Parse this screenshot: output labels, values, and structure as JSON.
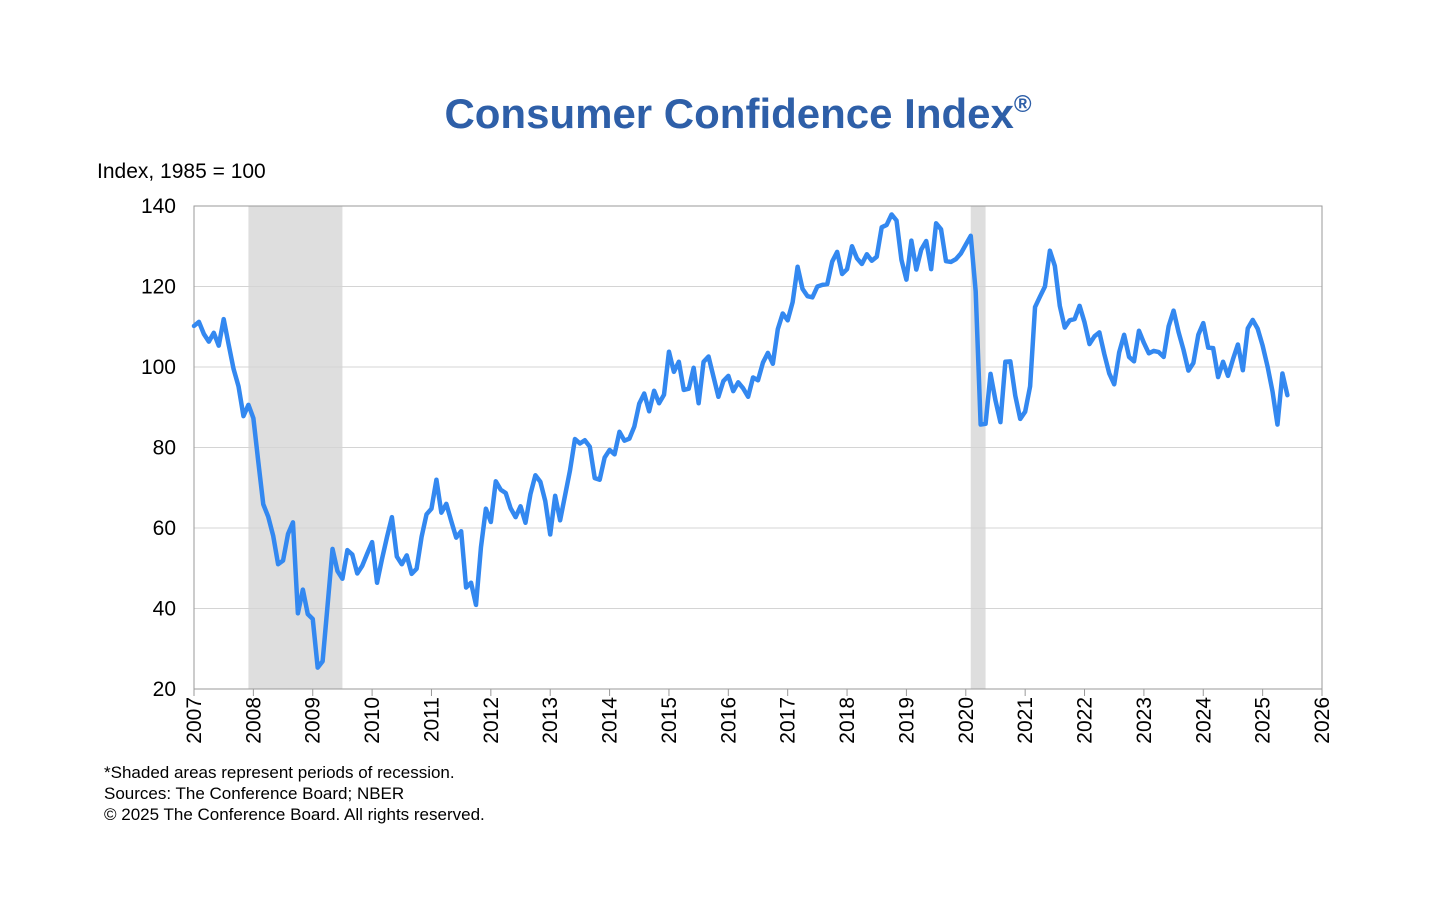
{
  "chart_data": {
    "type": "line",
    "title": "Consumer Confidence Index",
    "title_mark": "®",
    "ylabel": "Index, 1985 = 100",
    "ylim": [
      20,
      140
    ],
    "yticks": [
      "20",
      "40",
      "60",
      "80",
      "100",
      "120",
      "140"
    ],
    "xlim": [
      2007,
      2026
    ],
    "xticks": [
      "2007",
      "2008",
      "2009",
      "2010",
      "2011",
      "2012",
      "2013",
      "2014",
      "2015",
      "2016",
      "2017",
      "2018",
      "2019",
      "2020",
      "2021",
      "2022",
      "2023",
      "2024",
      "2025",
      "2026"
    ],
    "grid": true,
    "legend": "none",
    "line_color": "#3388f0",
    "title_color": "#2e5fa8",
    "recession_color": "#dedede",
    "recessions": [
      {
        "start": "2007-12",
        "end": "2009-06"
      },
      {
        "start": "2020-02",
        "end": "2020-04"
      }
    ],
    "series": [
      {
        "values": [
          [
            "2007-01",
            110.2
          ],
          [
            "2007-02",
            111.2
          ],
          [
            "2007-03",
            108.2
          ],
          [
            "2007-04",
            106.3
          ],
          [
            "2007-05",
            108.5
          ],
          [
            "2007-06",
            105.3
          ],
          [
            "2007-07",
            111.9
          ],
          [
            "2007-08",
            105.6
          ],
          [
            "2007-09",
            99.5
          ],
          [
            "2007-10",
            95.2
          ],
          [
            "2007-11",
            87.8
          ],
          [
            "2007-12",
            90.6
          ],
          [
            "2008-01",
            87.3
          ],
          [
            "2008-02",
            76.4
          ],
          [
            "2008-03",
            65.9
          ],
          [
            "2008-04",
            62.8
          ],
          [
            "2008-05",
            58.1
          ],
          [
            "2008-06",
            51.0
          ],
          [
            "2008-07",
            51.9
          ],
          [
            "2008-08",
            58.5
          ],
          [
            "2008-09",
            61.4
          ],
          [
            "2008-10",
            38.8
          ],
          [
            "2008-11",
            44.7
          ],
          [
            "2008-12",
            38.6
          ],
          [
            "2009-01",
            37.4
          ],
          [
            "2009-02",
            25.3
          ],
          [
            "2009-03",
            26.9
          ],
          [
            "2009-04",
            40.8
          ],
          [
            "2009-05",
            54.8
          ],
          [
            "2009-06",
            49.3
          ],
          [
            "2009-07",
            47.4
          ],
          [
            "2009-08",
            54.5
          ],
          [
            "2009-09",
            53.4
          ],
          [
            "2009-10",
            48.7
          ],
          [
            "2009-11",
            50.6
          ],
          [
            "2009-12",
            53.6
          ],
          [
            "2010-01",
            56.5
          ],
          [
            "2010-02",
            46.4
          ],
          [
            "2010-03",
            52.3
          ],
          [
            "2010-04",
            57.7
          ],
          [
            "2010-05",
            62.7
          ],
          [
            "2010-06",
            52.9
          ],
          [
            "2010-07",
            51.0
          ],
          [
            "2010-08",
            53.2
          ],
          [
            "2010-09",
            48.6
          ],
          [
            "2010-10",
            49.9
          ],
          [
            "2010-11",
            57.8
          ],
          [
            "2010-12",
            63.4
          ],
          [
            "2011-01",
            64.8
          ],
          [
            "2011-02",
            72.0
          ],
          [
            "2011-03",
            63.8
          ],
          [
            "2011-04",
            66.0
          ],
          [
            "2011-05",
            61.7
          ],
          [
            "2011-06",
            57.6
          ],
          [
            "2011-07",
            59.2
          ],
          [
            "2011-08",
            45.2
          ],
          [
            "2011-09",
            46.4
          ],
          [
            "2011-10",
            40.9
          ],
          [
            "2011-11",
            55.2
          ],
          [
            "2011-12",
            64.8
          ],
          [
            "2012-01",
            61.5
          ],
          [
            "2012-02",
            71.6
          ],
          [
            "2012-03",
            69.5
          ],
          [
            "2012-04",
            68.7
          ],
          [
            "2012-05",
            64.9
          ],
          [
            "2012-06",
            62.7
          ],
          [
            "2012-07",
            65.4
          ],
          [
            "2012-08",
            61.3
          ],
          [
            "2012-09",
            68.4
          ],
          [
            "2012-10",
            73.1
          ],
          [
            "2012-11",
            71.5
          ],
          [
            "2012-12",
            66.7
          ],
          [
            "2013-01",
            58.4
          ],
          [
            "2013-02",
            68.0
          ],
          [
            "2013-03",
            61.9
          ],
          [
            "2013-04",
            68.1
          ],
          [
            "2013-05",
            74.3
          ],
          [
            "2013-06",
            82.1
          ],
          [
            "2013-07",
            81.0
          ],
          [
            "2013-08",
            81.8
          ],
          [
            "2013-09",
            80.2
          ],
          [
            "2013-10",
            72.4
          ],
          [
            "2013-11",
            72.0
          ],
          [
            "2013-12",
            77.5
          ],
          [
            "2014-01",
            79.4
          ],
          [
            "2014-02",
            78.3
          ],
          [
            "2014-03",
            83.9
          ],
          [
            "2014-04",
            81.7
          ],
          [
            "2014-05",
            82.2
          ],
          [
            "2014-06",
            85.2
          ],
          [
            "2014-07",
            90.9
          ],
          [
            "2014-08",
            93.4
          ],
          [
            "2014-09",
            89.0
          ],
          [
            "2014-10",
            94.1
          ],
          [
            "2014-11",
            91.0
          ],
          [
            "2014-12",
            93.1
          ],
          [
            "2015-01",
            103.8
          ],
          [
            "2015-02",
            98.8
          ],
          [
            "2015-03",
            101.3
          ],
          [
            "2015-04",
            94.3
          ],
          [
            "2015-05",
            94.6
          ],
          [
            "2015-06",
            99.8
          ],
          [
            "2015-07",
            91.0
          ],
          [
            "2015-08",
            101.3
          ],
          [
            "2015-09",
            102.6
          ],
          [
            "2015-10",
            97.6
          ],
          [
            "2015-11",
            92.6
          ],
          [
            "2015-12",
            96.5
          ],
          [
            "2016-01",
            97.8
          ],
          [
            "2016-02",
            94.0
          ],
          [
            "2016-03",
            96.2
          ],
          [
            "2016-04",
            94.7
          ],
          [
            "2016-05",
            92.6
          ],
          [
            "2016-06",
            97.4
          ],
          [
            "2016-07",
            96.7
          ],
          [
            "2016-08",
            101.1
          ],
          [
            "2016-09",
            103.5
          ],
          [
            "2016-10",
            100.8
          ],
          [
            "2016-11",
            109.4
          ],
          [
            "2016-12",
            113.3
          ],
          [
            "2017-01",
            111.6
          ],
          [
            "2017-02",
            116.1
          ],
          [
            "2017-03",
            124.9
          ],
          [
            "2017-04",
            119.4
          ],
          [
            "2017-05",
            117.6
          ],
          [
            "2017-06",
            117.3
          ],
          [
            "2017-07",
            120.0
          ],
          [
            "2017-08",
            120.4
          ],
          [
            "2017-09",
            120.6
          ],
          [
            "2017-10",
            126.2
          ],
          [
            "2017-11",
            128.6
          ],
          [
            "2017-12",
            123.1
          ],
          [
            "2018-01",
            124.3
          ],
          [
            "2018-02",
            130.0
          ],
          [
            "2018-03",
            127.0
          ],
          [
            "2018-04",
            125.6
          ],
          [
            "2018-05",
            128.0
          ],
          [
            "2018-06",
            126.4
          ],
          [
            "2018-07",
            127.4
          ],
          [
            "2018-08",
            134.7
          ],
          [
            "2018-09",
            135.3
          ],
          [
            "2018-10",
            137.9
          ],
          [
            "2018-11",
            136.4
          ],
          [
            "2018-12",
            126.6
          ],
          [
            "2019-01",
            121.7
          ],
          [
            "2019-02",
            131.4
          ],
          [
            "2019-03",
            124.2
          ],
          [
            "2019-04",
            129.2
          ],
          [
            "2019-05",
            131.3
          ],
          [
            "2019-06",
            124.3
          ],
          [
            "2019-07",
            135.7
          ],
          [
            "2019-08",
            134.2
          ],
          [
            "2019-09",
            126.3
          ],
          [
            "2019-10",
            126.1
          ],
          [
            "2019-11",
            126.8
          ],
          [
            "2019-12",
            128.2
          ],
          [
            "2020-01",
            130.4
          ],
          [
            "2020-02",
            132.6
          ],
          [
            "2020-03",
            118.8
          ],
          [
            "2020-04",
            85.7
          ],
          [
            "2020-05",
            85.9
          ],
          [
            "2020-06",
            98.3
          ],
          [
            "2020-07",
            91.7
          ],
          [
            "2020-08",
            86.3
          ],
          [
            "2020-09",
            101.3
          ],
          [
            "2020-10",
            101.4
          ],
          [
            "2020-11",
            92.9
          ],
          [
            "2020-12",
            87.1
          ],
          [
            "2021-01",
            88.9
          ],
          [
            "2021-02",
            95.2
          ],
          [
            "2021-03",
            114.9
          ],
          [
            "2021-04",
            117.5
          ],
          [
            "2021-05",
            120.0
          ],
          [
            "2021-06",
            128.9
          ],
          [
            "2021-07",
            125.1
          ],
          [
            "2021-08",
            115.2
          ],
          [
            "2021-09",
            109.8
          ],
          [
            "2021-10",
            111.6
          ],
          [
            "2021-11",
            111.9
          ],
          [
            "2021-12",
            115.2
          ],
          [
            "2022-01",
            111.1
          ],
          [
            "2022-02",
            105.7
          ],
          [
            "2022-03",
            107.6
          ],
          [
            "2022-04",
            108.6
          ],
          [
            "2022-05",
            103.2
          ],
          [
            "2022-06",
            98.4
          ],
          [
            "2022-07",
            95.7
          ],
          [
            "2022-08",
            103.6
          ],
          [
            "2022-09",
            108.0
          ],
          [
            "2022-10",
            102.5
          ],
          [
            "2022-11",
            101.4
          ],
          [
            "2022-12",
            109.0
          ],
          [
            "2023-01",
            106.0
          ],
          [
            "2023-02",
            103.4
          ],
          [
            "2023-03",
            104.0
          ],
          [
            "2023-04",
            103.7
          ],
          [
            "2023-05",
            102.5
          ],
          [
            "2023-06",
            110.1
          ],
          [
            "2023-07",
            114.0
          ],
          [
            "2023-08",
            108.7
          ],
          [
            "2023-09",
            104.3
          ],
          [
            "2023-10",
            99.1
          ],
          [
            "2023-11",
            101.0
          ],
          [
            "2023-12",
            108.0
          ],
          [
            "2024-01",
            110.9
          ],
          [
            "2024-02",
            104.8
          ],
          [
            "2024-03",
            104.7
          ],
          [
            "2024-04",
            97.5
          ],
          [
            "2024-05",
            101.3
          ],
          [
            "2024-06",
            97.8
          ],
          [
            "2024-07",
            101.9
          ],
          [
            "2024-08",
            105.6
          ],
          [
            "2024-09",
            99.2
          ],
          [
            "2024-10",
            109.6
          ],
          [
            "2024-11",
            111.7
          ],
          [
            "2024-12",
            109.5
          ],
          [
            "2025-01",
            105.3
          ],
          [
            "2025-02",
            100.1
          ],
          [
            "2025-03",
            93.9
          ],
          [
            "2025-04",
            85.7
          ],
          [
            "2025-05",
            98.4
          ],
          [
            "2025-06",
            93.0
          ]
        ]
      }
    ]
  },
  "footer": {
    "note": "*Shaded areas represent periods of recession.",
    "sources": "Sources:  The Conference Board;  NBER",
    "copyright": "© 2025 The Conference Board. All rights reserved."
  }
}
